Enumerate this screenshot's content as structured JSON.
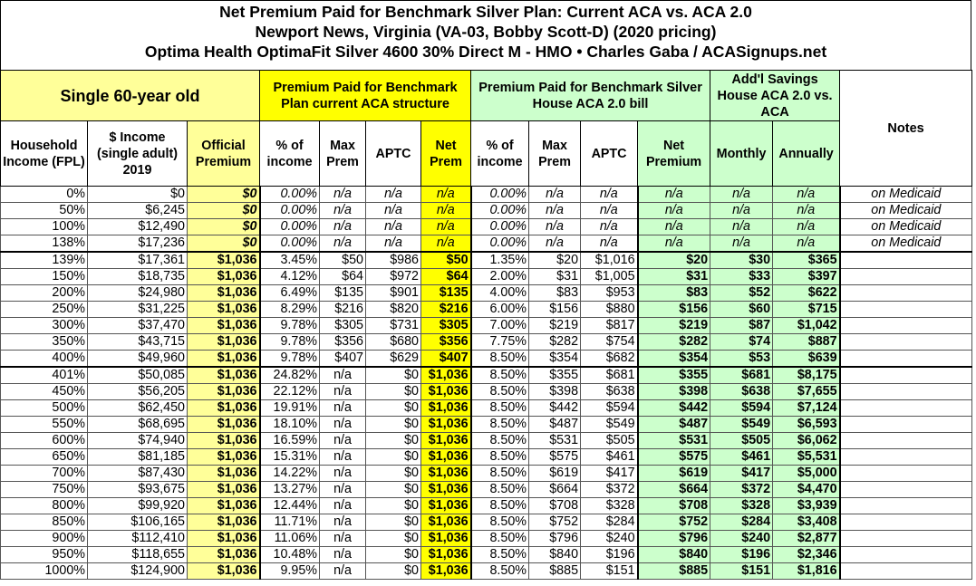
{
  "title": [
    "Net Premium Paid for Benchmark Silver Plan: Current ACA vs. ACA 2.0",
    "Newport News, Virginia (VA-03, Bobby Scott-D) (2020 pricing)",
    "Optima Health OptimaFit Silver 4600 30% Direct M - HMO • Charles Gaba / ACASignups.net"
  ],
  "groups": {
    "single": "Single 60-year old",
    "current": "Premium Paid for Benchmark Plan current ACA structure",
    "house": "Premium Paid for Benchmark Silver House ACA 2.0 bill",
    "savings": "Add'l Savings House ACA 2.0 vs. ACA",
    "notes": "Notes"
  },
  "headers": [
    "Household Income (FPL)",
    "$ Income (single adult) 2019",
    "Official Premium",
    "% of income",
    "Max Prem",
    "APTC",
    "Net Prem",
    "% of income",
    "Max Prem",
    "APTC",
    "Net Premium",
    "Monthly",
    "Annually"
  ],
  "colors": {
    "light_yellow": "#ffff99",
    "yellow": "#ffff00",
    "green": "#ccffcc"
  },
  "rows": [
    [
      "0%",
      "$0",
      "$0",
      "0.00%",
      "n/a",
      "n/a",
      "n/a",
      "0.00%",
      "n/a",
      "n/a",
      "n/a",
      "n/a",
      "n/a",
      "on Medicaid"
    ],
    [
      "50%",
      "$6,245",
      "$0",
      "0.00%",
      "n/a",
      "n/a",
      "n/a",
      "0.00%",
      "n/a",
      "n/a",
      "n/a",
      "n/a",
      "n/a",
      "on Medicaid"
    ],
    [
      "100%",
      "$12,490",
      "$0",
      "0.00%",
      "n/a",
      "n/a",
      "n/a",
      "0.00%",
      "n/a",
      "n/a",
      "n/a",
      "n/a",
      "n/a",
      "on Medicaid"
    ],
    [
      "138%",
      "$17,236",
      "$0",
      "0.00%",
      "n/a",
      "n/a",
      "n/a",
      "0.00%",
      "n/a",
      "n/a",
      "n/a",
      "n/a",
      "n/a",
      "on Medicaid"
    ],
    [
      "139%",
      "$17,361",
      "$1,036",
      "3.45%",
      "$50",
      "$986",
      "$50",
      "1.35%",
      "$20",
      "$1,016",
      "$20",
      "$30",
      "$365",
      ""
    ],
    [
      "150%",
      "$18,735",
      "$1,036",
      "4.12%",
      "$64",
      "$972",
      "$64",
      "2.00%",
      "$31",
      "$1,005",
      "$31",
      "$33",
      "$397",
      ""
    ],
    [
      "200%",
      "$24,980",
      "$1,036",
      "6.49%",
      "$135",
      "$901",
      "$135",
      "4.00%",
      "$83",
      "$953",
      "$83",
      "$52",
      "$622",
      ""
    ],
    [
      "250%",
      "$31,225",
      "$1,036",
      "8.29%",
      "$216",
      "$820",
      "$216",
      "6.00%",
      "$156",
      "$880",
      "$156",
      "$60",
      "$715",
      ""
    ],
    [
      "300%",
      "$37,470",
      "$1,036",
      "9.78%",
      "$305",
      "$731",
      "$305",
      "7.00%",
      "$219",
      "$817",
      "$219",
      "$87",
      "$1,042",
      ""
    ],
    [
      "350%",
      "$43,715",
      "$1,036",
      "9.78%",
      "$356",
      "$680",
      "$356",
      "7.75%",
      "$282",
      "$754",
      "$282",
      "$74",
      "$887",
      ""
    ],
    [
      "400%",
      "$49,960",
      "$1,036",
      "9.78%",
      "$407",
      "$629",
      "$407",
      "8.50%",
      "$354",
      "$682",
      "$354",
      "$53",
      "$639",
      ""
    ],
    [
      "401%",
      "$50,085",
      "$1,036",
      "24.82%",
      "n/a",
      "$0",
      "$1,036",
      "8.50%",
      "$355",
      "$681",
      "$355",
      "$681",
      "$8,175",
      ""
    ],
    [
      "450%",
      "$56,205",
      "$1,036",
      "22.12%",
      "n/a",
      "$0",
      "$1,036",
      "8.50%",
      "$398",
      "$638",
      "$398",
      "$638",
      "$7,655",
      ""
    ],
    [
      "500%",
      "$62,450",
      "$1,036",
      "19.91%",
      "n/a",
      "$0",
      "$1,036",
      "8.50%",
      "$442",
      "$594",
      "$442",
      "$594",
      "$7,124",
      ""
    ],
    [
      "550%",
      "$68,695",
      "$1,036",
      "18.10%",
      "n/a",
      "$0",
      "$1,036",
      "8.50%",
      "$487",
      "$549",
      "$487",
      "$549",
      "$6,593",
      ""
    ],
    [
      "600%",
      "$74,940",
      "$1,036",
      "16.59%",
      "n/a",
      "$0",
      "$1,036",
      "8.50%",
      "$531",
      "$505",
      "$531",
      "$505",
      "$6,062",
      ""
    ],
    [
      "650%",
      "$81,185",
      "$1,036",
      "15.31%",
      "n/a",
      "$0",
      "$1,036",
      "8.50%",
      "$575",
      "$461",
      "$575",
      "$461",
      "$5,531",
      ""
    ],
    [
      "700%",
      "$87,430",
      "$1,036",
      "14.22%",
      "n/a",
      "$0",
      "$1,036",
      "8.50%",
      "$619",
      "$417",
      "$619",
      "$417",
      "$5,000",
      ""
    ],
    [
      "750%",
      "$93,675",
      "$1,036",
      "13.27%",
      "n/a",
      "$0",
      "$1,036",
      "8.50%",
      "$664",
      "$372",
      "$664",
      "$372",
      "$4,470",
      ""
    ],
    [
      "800%",
      "$99,920",
      "$1,036",
      "12.44%",
      "n/a",
      "$0",
      "$1,036",
      "8.50%",
      "$708",
      "$328",
      "$708",
      "$328",
      "$3,939",
      ""
    ],
    [
      "850%",
      "$106,165",
      "$1,036",
      "11.71%",
      "n/a",
      "$0",
      "$1,036",
      "8.50%",
      "$752",
      "$284",
      "$752",
      "$284",
      "$3,408",
      ""
    ],
    [
      "900%",
      "$112,410",
      "$1,036",
      "11.06%",
      "n/a",
      "$0",
      "$1,036",
      "8.50%",
      "$796",
      "$240",
      "$796",
      "$240",
      "$2,877",
      ""
    ],
    [
      "950%",
      "$118,655",
      "$1,036",
      "10.48%",
      "n/a",
      "$0",
      "$1,036",
      "8.50%",
      "$840",
      "$196",
      "$840",
      "$196",
      "$2,346",
      ""
    ],
    [
      "1000%",
      "$124,900",
      "$1,036",
      "9.95%",
      "n/a",
      "$0",
      "$1,036",
      "8.50%",
      "$885",
      "$151",
      "$885",
      "$151",
      "$1,816",
      ""
    ]
  ]
}
